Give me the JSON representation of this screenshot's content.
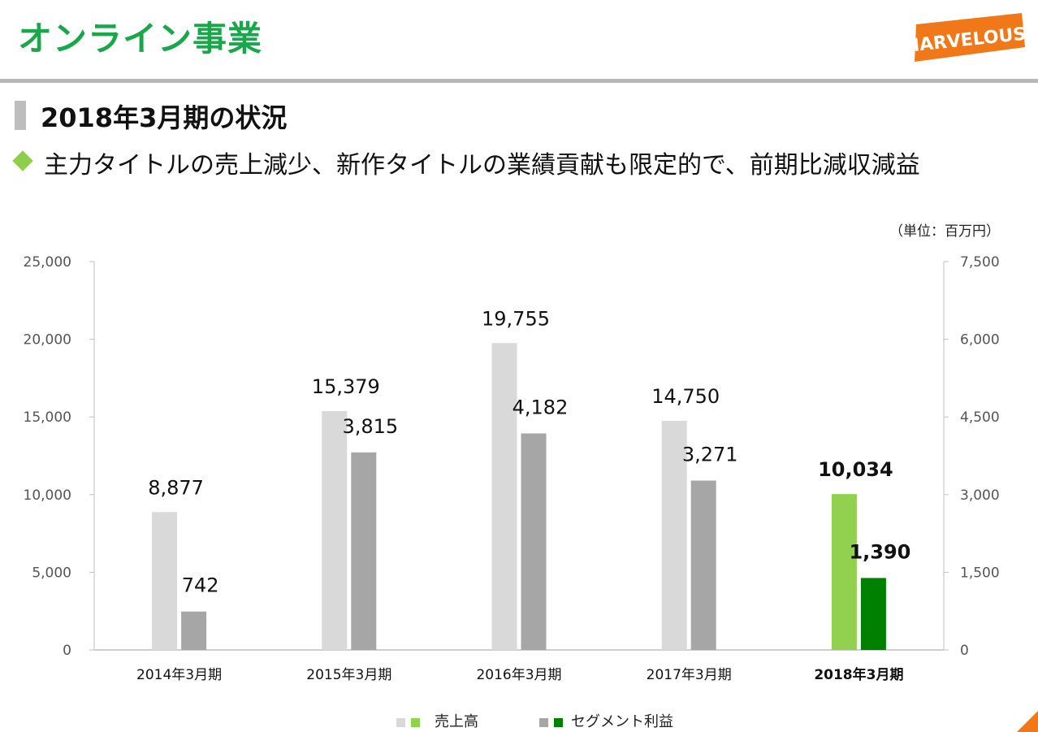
{
  "header": {
    "title": "オンライン事業",
    "logo_text": "MARVELOUS!"
  },
  "section": {
    "title": "2018年3月期の状況",
    "bullet": "主力タイトルの売上減少、新作タイトルの業績貢献も限定的で、前期比減収減益"
  },
  "unit": "（単位：百万円）",
  "colors": {
    "title_green": "#1aa64a",
    "sales_past": "#d9d9d9",
    "profit_past": "#a6a6a6",
    "sales_current": "#92d050",
    "profit_current": "#008000",
    "logo_orange": "#f07818"
  },
  "chart_data": {
    "type": "bar",
    "categories": [
      "2014年3月期",
      "2015年3月期",
      "2016年3月期",
      "2017年3月期",
      "2018年3月期"
    ],
    "highlight_category": "2018年3月期",
    "series": [
      {
        "name": "売上高",
        "axis": "left",
        "values": [
          8877,
          15379,
          19755,
          14750,
          10034
        ],
        "labels": [
          "8,877",
          "15,379",
          "19,755",
          "14,750",
          "10,034"
        ]
      },
      {
        "name": "セグメント利益",
        "axis": "right",
        "values": [
          742,
          3815,
          4182,
          3271,
          1390
        ],
        "labels": [
          "742",
          "3,815",
          "4,182",
          "3,271",
          "1,390"
        ]
      }
    ],
    "y_left": {
      "min": 0,
      "max": 25000,
      "ticks": [
        "0",
        "5,000",
        "10,000",
        "15,000",
        "20,000",
        "25,000"
      ]
    },
    "y_right": {
      "min": 0,
      "max": 7500,
      "ticks": [
        "0",
        "1,500",
        "3,000",
        "4,500",
        "6,000",
        "7,500"
      ]
    },
    "legend_position": "bottom",
    "grid": false
  },
  "legend": [
    {
      "label": "売上高",
      "icon": "sales-swatch"
    },
    {
      "label": "セグメント利益",
      "icon": "profit-swatch"
    }
  ]
}
